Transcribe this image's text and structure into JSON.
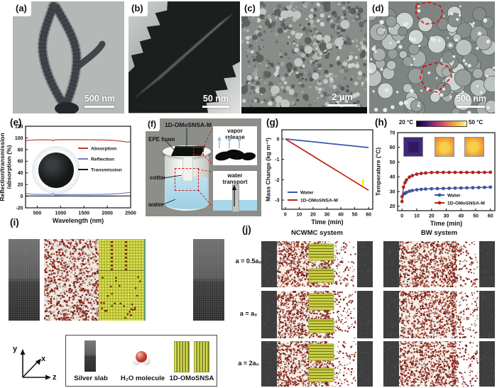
{
  "panels": {
    "a": {
      "label": "(a)",
      "scalebar": "500 nm"
    },
    "b": {
      "label": "(b)",
      "scalebar": "50 nm"
    },
    "c": {
      "label": "(c)",
      "scalebar": "2 μm"
    },
    "d": {
      "label": "(d)",
      "scalebar": "500 nm"
    },
    "e": {
      "label": "(e)"
    },
    "f": {
      "label": "(f)",
      "title": "1D-OMoSNSA-M",
      "epe": "EPE foam",
      "cotton": "cotton",
      "water": "water",
      "inset_top": "vapor release",
      "inset_bottom": "water transport"
    },
    "g": {
      "label": "(g)"
    },
    "h": {
      "label": "(h)",
      "colorbar_min": "20 °C",
      "colorbar_max": "50 °C"
    },
    "i": {
      "label": "(i)",
      "legend": [
        "Silver slab",
        "H₂O molecule",
        "1D-OMoSNSA"
      ],
      "axis_y": "y",
      "axis_x": "x",
      "axis_z": "z"
    },
    "j": {
      "label": "(j)",
      "columns": [
        "NCWMC system",
        "BW system"
      ],
      "rows": [
        "a = 0.5a₀",
        "a = a₀",
        "a = 2a₀"
      ]
    }
  },
  "chart_data": [
    {
      "id": "e",
      "type": "line",
      "xlabel": "Wavelength (nm)",
      "ylabel": "Reflection/transmission",
      "ylabel2": "/absorption (%)",
      "xlim": [
        250,
        2500
      ],
      "ylim": [
        -20,
        120
      ],
      "xticks": [
        500,
        1000,
        1500,
        2000,
        2500
      ],
      "yticks": [
        -20,
        0,
        20,
        40,
        60,
        80,
        100,
        120
      ],
      "legend_position": "center-right",
      "grid": false,
      "series": [
        {
          "name": "Absorption",
          "color": "#c23b32",
          "x": [
            250,
            320,
            420,
            550,
            700,
            800,
            840,
            860,
            900,
            1100,
            1300,
            1500,
            1700,
            1900,
            2050,
            2200,
            2320,
            2420,
            2470,
            2500
          ],
          "y": [
            95.2,
            96.0,
            96.5,
            96.8,
            96.8,
            96.6,
            95.0,
            96.5,
            96.8,
            97.0,
            97.0,
            96.9,
            96.7,
            96.4,
            96.1,
            95.3,
            94.3,
            92.8,
            93.5,
            93.0
          ]
        },
        {
          "name": "Reflection",
          "color": "#6b7fc4",
          "x": [
            250,
            320,
            420,
            550,
            700,
            800,
            840,
            860,
            900,
            1100,
            1400,
            1700,
            1950,
            2150,
            2300,
            2420,
            2500
          ],
          "y": [
            4.8,
            4.0,
            3.4,
            3.0,
            2.9,
            3.0,
            4.8,
            3.0,
            2.8,
            2.7,
            2.7,
            2.9,
            3.3,
            3.9,
            4.7,
            5.9,
            6.4
          ]
        },
        {
          "name": "Transmission",
          "color": "#1a1a1a",
          "x": [
            250,
            500,
            840,
            860,
            1200,
            1600,
            2000,
            2300,
            2500
          ],
          "y": [
            0.4,
            0.3,
            0.3,
            0.6,
            0.3,
            0.25,
            0.2,
            0.3,
            0.5
          ]
        }
      ]
    },
    {
      "id": "g",
      "type": "line",
      "xlabel": "Time (min)",
      "ylabel": "Mass Change (kg m⁻²)",
      "xlim": [
        -2.5,
        63
      ],
      "ylim": [
        -3.45,
        0.45
      ],
      "xticks": [
        0,
        10,
        20,
        30,
        40,
        50,
        60
      ],
      "yticks": [
        0,
        -1,
        -2,
        -3
      ],
      "legend_position": "bottom-left",
      "grid": false,
      "series": [
        {
          "name": "Water",
          "color": "#3a57ad",
          "x": [
            0,
            5,
            10,
            15,
            20,
            25,
            30,
            35,
            40,
            45,
            50,
            55,
            60
          ],
          "y": [
            0,
            -0.035,
            -0.07,
            -0.105,
            -0.14,
            -0.175,
            -0.21,
            -0.245,
            -0.28,
            -0.315,
            -0.35,
            -0.385,
            -0.42
          ]
        },
        {
          "name": "1D-OMoSNSA-M",
          "color": "#bf2218",
          "x": [
            0,
            5,
            10,
            15,
            20,
            25,
            30,
            35,
            40,
            45,
            50,
            55,
            60
          ],
          "y": [
            0,
            -0.21,
            -0.42,
            -0.63,
            -0.84,
            -1.05,
            -1.26,
            -1.47,
            -1.68,
            -1.89,
            -2.1,
            -2.31,
            -2.52
          ]
        }
      ],
      "annotations": [
        {
          "x0": 55.2,
          "x1": 56.6,
          "y0": -1.98,
          "y1": -2.3,
          "color": "#ffe70a"
        }
      ]
    },
    {
      "id": "h",
      "type": "scatter-line",
      "markers": true,
      "xlabel": "Time (min)",
      "ylabel": "Temperature (°C)",
      "xlim": [
        -3,
        63
      ],
      "ylim": [
        17,
        70
      ],
      "xticks": [
        0,
        10,
        20,
        30,
        40,
        50,
        60
      ],
      "yticks": [
        20,
        30,
        40,
        50,
        60,
        70
      ],
      "legend_position": "bottom-right",
      "grid": false,
      "colorbar": {
        "min_label": "20 °C",
        "max_label": "50 °C"
      },
      "series": [
        {
          "name": "Water",
          "color": "#3a57ad",
          "x": [
            0,
            1,
            2,
            3,
            5,
            7,
            10,
            13,
            16,
            20,
            24,
            28,
            32,
            36,
            40,
            44,
            48,
            52,
            56,
            60
          ],
          "y": [
            26.5,
            28.2,
            28.8,
            29.4,
            30.2,
            30.7,
            31.2,
            31.5,
            31.7,
            31.9,
            32.0,
            32.1,
            32.2,
            32.3,
            32.4,
            32.5,
            32.6,
            32.7,
            32.8,
            33.0
          ]
        },
        {
          "name": "1D-OMoSNSA-M",
          "color": "#bf2218",
          "x": [
            0,
            1,
            2,
            3,
            5,
            7,
            10,
            13,
            16,
            20,
            24,
            28,
            32,
            36,
            40,
            44,
            48,
            52,
            56,
            60
          ],
          "y": [
            23.2,
            33.0,
            36.0,
            37.8,
            39.8,
            40.8,
            41.8,
            42.3,
            42.6,
            42.9,
            43.0,
            43.0,
            43.0,
            43.0,
            43.0,
            43.0,
            43.0,
            43.0,
            43.0,
            43.1
          ]
        }
      ]
    }
  ]
}
